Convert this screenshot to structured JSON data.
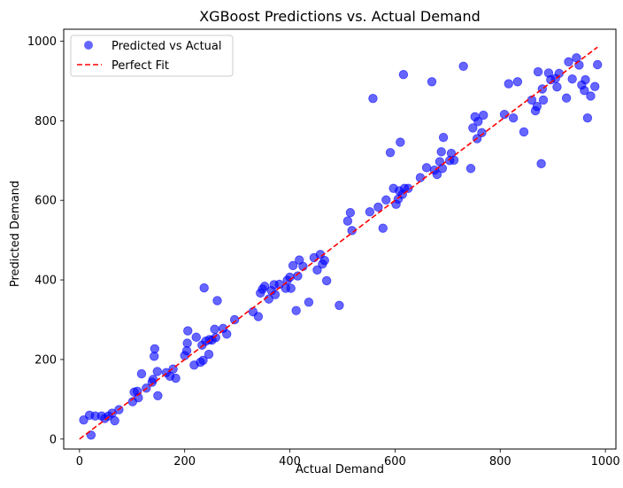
{
  "chart_data": {
    "type": "scatter",
    "title": "XGBoost Predictions vs. Actual Demand",
    "xlabel": "Actual Demand",
    "ylabel": "Predicted Demand",
    "xlim": [
      -30,
      1020
    ],
    "ylim": [
      -25,
      1030
    ],
    "xticks": [
      0,
      200,
      400,
      600,
      800,
      1000
    ],
    "yticks": [
      0,
      200,
      400,
      600,
      800,
      1000
    ],
    "grid": false,
    "legend_position": "top-left",
    "series": [
      {
        "name": "Predicted vs Actual",
        "color": "#0000ff",
        "opacity": 0.6,
        "points": [
          [
            8,
            48
          ],
          [
            19,
            60
          ],
          [
            22,
            10
          ],
          [
            30,
            58
          ],
          [
            42,
            58
          ],
          [
            48,
            52
          ],
          [
            55,
            58
          ],
          [
            62,
            65
          ],
          [
            67,
            46
          ],
          [
            75,
            74
          ],
          [
            101,
            94
          ],
          [
            104,
            118
          ],
          [
            110,
            120
          ],
          [
            112,
            104
          ],
          [
            118,
            164
          ],
          [
            127,
            128
          ],
          [
            138,
            143
          ],
          [
            140,
            150
          ],
          [
            142,
            208
          ],
          [
            143,
            227
          ],
          [
            148,
            170
          ],
          [
            149,
            109
          ],
          [
            165,
            167
          ],
          [
            172,
            158
          ],
          [
            178,
            176
          ],
          [
            183,
            153
          ],
          [
            200,
            210
          ],
          [
            204,
            222
          ],
          [
            205,
            241
          ],
          [
            206,
            272
          ],
          [
            218,
            186
          ],
          [
            222,
            256
          ],
          [
            230,
            193
          ],
          [
            233,
            236
          ],
          [
            235,
            198
          ],
          [
            237,
            380
          ],
          [
            240,
            246
          ],
          [
            246,
            213
          ],
          [
            247,
            250
          ],
          [
            252,
            249
          ],
          [
            257,
            276
          ],
          [
            259,
            255
          ],
          [
            262,
            348
          ],
          [
            273,
            278
          ],
          [
            280,
            264
          ],
          [
            295,
            300
          ],
          [
            330,
            320
          ],
          [
            340,
            308
          ],
          [
            344,
            367
          ],
          [
            348,
            377
          ],
          [
            352,
            384
          ],
          [
            360,
            352
          ],
          [
            365,
            373
          ],
          [
            370,
            388
          ],
          [
            372,
            363
          ],
          [
            380,
            389
          ],
          [
            392,
            379
          ],
          [
            395,
            399
          ],
          [
            400,
            407
          ],
          [
            402,
            379
          ],
          [
            406,
            436
          ],
          [
            412,
            323
          ],
          [
            415,
            410
          ],
          [
            418,
            450
          ],
          [
            425,
            434
          ],
          [
            436,
            344
          ],
          [
            446,
            456
          ],
          [
            452,
            425
          ],
          [
            458,
            464
          ],
          [
            462,
            440
          ],
          [
            466,
            449
          ],
          [
            470,
            398
          ],
          [
            494,
            336
          ],
          [
            510,
            548
          ],
          [
            515,
            569
          ],
          [
            518,
            524
          ],
          [
            552,
            571
          ],
          [
            558,
            856
          ],
          [
            568,
            583
          ],
          [
            577,
            530
          ],
          [
            583,
            601
          ],
          [
            591,
            720
          ],
          [
            597,
            630
          ],
          [
            602,
            590
          ],
          [
            606,
            603
          ],
          [
            608,
            624
          ],
          [
            610,
            746
          ],
          [
            614,
            615
          ],
          [
            616,
            916
          ],
          [
            618,
            630
          ],
          [
            625,
            630
          ],
          [
            648,
            657
          ],
          [
            660,
            682
          ],
          [
            670,
            898
          ],
          [
            675,
            676
          ],
          [
            680,
            665
          ],
          [
            685,
            697
          ],
          [
            688,
            722
          ],
          [
            690,
            680
          ],
          [
            692,
            758
          ],
          [
            704,
            700
          ],
          [
            707,
            718
          ],
          [
            712,
            701
          ],
          [
            730,
            937
          ],
          [
            744,
            680
          ],
          [
            748,
            782
          ],
          [
            752,
            810
          ],
          [
            756,
            755
          ],
          [
            758,
            798
          ],
          [
            765,
            770
          ],
          [
            768,
            814
          ],
          [
            808,
            816
          ],
          [
            816,
            893
          ],
          [
            825,
            807
          ],
          [
            833,
            898
          ],
          [
            845,
            772
          ],
          [
            860,
            852
          ],
          [
            867,
            825
          ],
          [
            870,
            836
          ],
          [
            872,
            923
          ],
          [
            878,
            692
          ],
          [
            880,
            880
          ],
          [
            882,
            852
          ],
          [
            892,
            920
          ],
          [
            896,
            903
          ],
          [
            905,
            906
          ],
          [
            908,
            885
          ],
          [
            912,
            919
          ],
          [
            926,
            857
          ],
          [
            930,
            948
          ],
          [
            937,
            905
          ],
          [
            945,
            958
          ],
          [
            950,
            940
          ],
          [
            955,
            890
          ],
          [
            960,
            876
          ],
          [
            962,
            903
          ],
          [
            966,
            807
          ],
          [
            972,
            862
          ],
          [
            980,
            886
          ],
          [
            985,
            941
          ]
        ]
      },
      {
        "name": "Perfect Fit",
        "kind": "line",
        "color": "#ff0000",
        "dashed": true,
        "points": [
          [
            0,
            0
          ],
          [
            985,
            985
          ]
        ]
      }
    ]
  }
}
